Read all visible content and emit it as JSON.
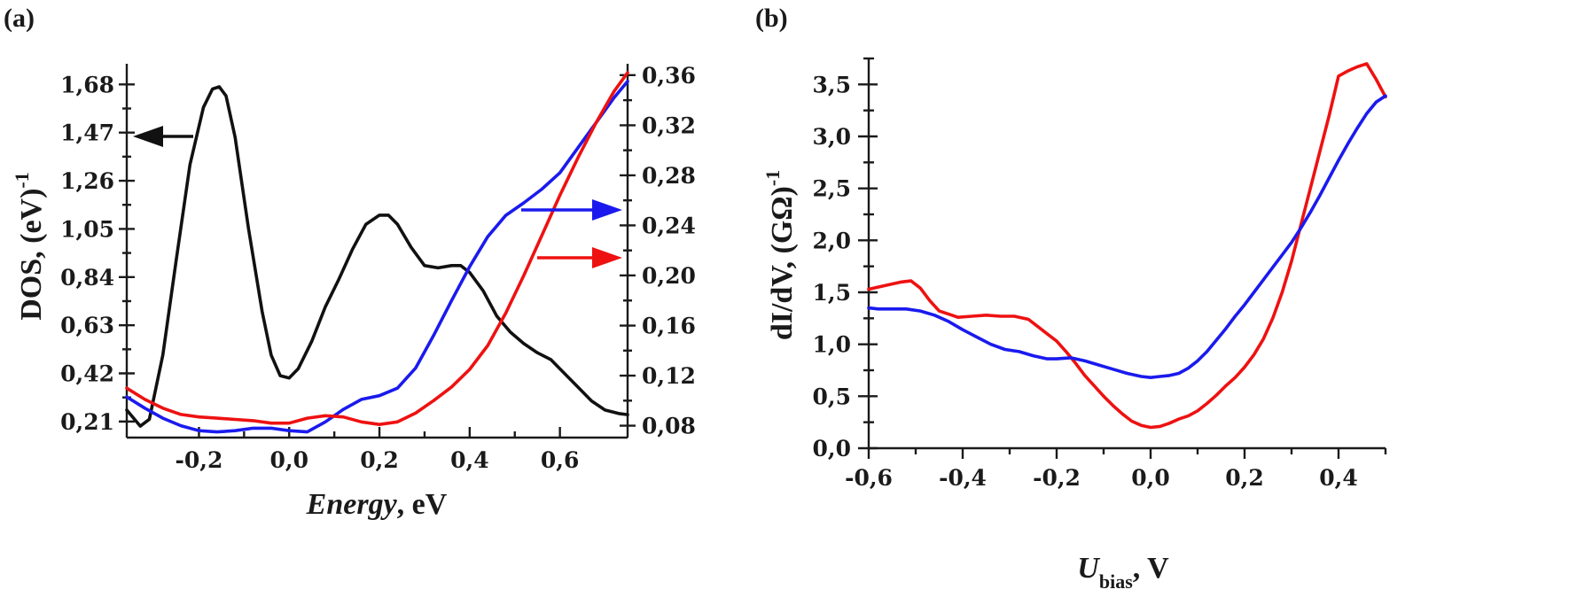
{
  "panels": [
    {
      "label": "(a)",
      "chart_data": {
        "type": "line",
        "xlabel": {
          "italic": "Energy",
          "rest": ", eV"
        },
        "ylabel_left": {
          "main": "DOS, (eV)",
          "sup": "-1"
        },
        "ylabel_right": "",
        "xlim": [
          -0.36,
          0.75
        ],
        "ylim_left": [
          0.14,
          1.77
        ],
        "ylim_right": [
          0.0705,
          0.3691
        ],
        "x_ticks": [
          -0.2,
          0.0,
          0.2,
          0.4,
          0.6
        ],
        "x_tick_labels": [
          "-0,2",
          "0,0",
          "0,2",
          "0,4",
          "0,6"
        ],
        "y_left_ticks": [
          0.21,
          0.42,
          0.63,
          0.84,
          1.05,
          1.26,
          1.47,
          1.68
        ],
        "y_left_tick_labels": [
          "0,21",
          "0,42",
          "0,63",
          "0,84",
          "1,05",
          "1,26",
          "1,47",
          "1,68"
        ],
        "y_right_ticks": [
          0.08,
          0.12,
          0.16,
          0.2,
          0.24,
          0.28,
          0.32,
          0.36
        ],
        "y_right_tick_labels": [
          "0,08",
          "0,12",
          "0,16",
          "0,20",
          "0,24",
          "0,28",
          "0,32",
          "0,36"
        ],
        "series": [
          {
            "color": "#111111",
            "axis": "left",
            "arrow": "left",
            "x": [
              -0.36,
              -0.33,
              -0.31,
              -0.28,
              -0.25,
              -0.22,
              -0.19,
              -0.17,
              -0.155,
              -0.14,
              -0.12,
              -0.09,
              -0.06,
              -0.04,
              -0.02,
              0.0,
              0.02,
              0.05,
              0.08,
              0.11,
              0.14,
              0.17,
              0.2,
              0.22,
              0.24,
              0.27,
              0.3,
              0.33,
              0.36,
              0.38,
              0.4,
              0.43,
              0.46,
              0.49,
              0.52,
              0.55,
              0.58,
              0.61,
              0.64,
              0.67,
              0.7,
              0.73,
              0.75
            ],
            "y": [
              0.26,
              0.19,
              0.22,
              0.5,
              0.92,
              1.33,
              1.58,
              1.66,
              1.67,
              1.63,
              1.45,
              1.05,
              0.69,
              0.5,
              0.41,
              0.4,
              0.44,
              0.56,
              0.71,
              0.83,
              0.96,
              1.07,
              1.11,
              1.11,
              1.07,
              0.97,
              0.89,
              0.88,
              0.89,
              0.89,
              0.86,
              0.78,
              0.67,
              0.6,
              0.55,
              0.51,
              0.48,
              0.42,
              0.36,
              0.3,
              0.26,
              0.245,
              0.24
            ]
          },
          {
            "color": "#1a1aee",
            "axis": "right",
            "arrow": "right",
            "x": [
              -0.36,
              -0.32,
              -0.28,
              -0.24,
              -0.2,
              -0.16,
              -0.12,
              -0.08,
              -0.04,
              0.0,
              0.04,
              0.08,
              0.12,
              0.16,
              0.2,
              0.24,
              0.28,
              0.32,
              0.36,
              0.4,
              0.44,
              0.48,
              0.52,
              0.56,
              0.6,
              0.64,
              0.68,
              0.72,
              0.75
            ],
            "y": [
              0.103,
              0.094,
              0.086,
              0.08,
              0.076,
              0.075,
              0.076,
              0.078,
              0.078,
              0.076,
              0.075,
              0.083,
              0.093,
              0.101,
              0.104,
              0.11,
              0.126,
              0.152,
              0.18,
              0.207,
              0.231,
              0.248,
              0.258,
              0.269,
              0.282,
              0.302,
              0.322,
              0.342,
              0.355
            ]
          },
          {
            "color": "#ee1111",
            "axis": "right",
            "arrow": "right",
            "x": [
              -0.36,
              -0.32,
              -0.28,
              -0.24,
              -0.2,
              -0.16,
              -0.12,
              -0.08,
              -0.04,
              0.0,
              0.04,
              0.08,
              0.12,
              0.16,
              0.2,
              0.24,
              0.28,
              0.32,
              0.36,
              0.4,
              0.44,
              0.48,
              0.52,
              0.56,
              0.6,
              0.64,
              0.68,
              0.72,
              0.75
            ],
            "y": [
              0.11,
              0.101,
              0.094,
              0.089,
              0.087,
              0.086,
              0.085,
              0.084,
              0.082,
              0.082,
              0.086,
              0.088,
              0.087,
              0.083,
              0.081,
              0.083,
              0.09,
              0.1,
              0.111,
              0.125,
              0.144,
              0.17,
              0.2,
              0.232,
              0.264,
              0.294,
              0.322,
              0.347,
              0.362
            ]
          }
        ]
      }
    },
    {
      "label": "(b)",
      "chart_data": {
        "type": "line",
        "xlabel": {
          "main": "U",
          "sub": "bias",
          "rest": ", V"
        },
        "ylabel": {
          "main": "dI/dV, (GΩ)",
          "sup": "-1"
        },
        "xlim": [
          -0.6,
          0.5
        ],
        "ylim": [
          0.0,
          3.75
        ],
        "x_ticks": [
          -0.6,
          -0.4,
          -0.2,
          0.0,
          0.2,
          0.4
        ],
        "x_tick_labels": [
          "-0,6",
          "-0,4",
          "-0,2",
          "0,0",
          "0,2",
          "0,4"
        ],
        "y_ticks": [
          0.0,
          0.5,
          1.0,
          1.5,
          2.0,
          2.5,
          3.0,
          3.5
        ],
        "y_tick_labels": [
          "0,0",
          "0,5",
          "1,0",
          "1,5",
          "2,0",
          "2,5",
          "3,0",
          "3,5"
        ],
        "series": [
          {
            "color": "#ee1111",
            "x": [
              -0.6,
              -0.58,
              -0.56,
              -0.53,
              -0.51,
              -0.49,
              -0.47,
              -0.45,
              -0.43,
              -0.41,
              -0.38,
              -0.35,
              -0.32,
              -0.29,
              -0.26,
              -0.24,
              -0.22,
              -0.2,
              -0.18,
              -0.16,
              -0.14,
              -0.12,
              -0.1,
              -0.08,
              -0.06,
              -0.04,
              -0.02,
              0.0,
              0.02,
              0.04,
              0.06,
              0.08,
              0.1,
              0.12,
              0.14,
              0.16,
              0.18,
              0.2,
              0.22,
              0.24,
              0.26,
              0.28,
              0.3,
              0.32,
              0.34,
              0.36,
              0.38,
              0.4,
              0.42,
              0.44,
              0.46,
              0.48,
              0.5
            ],
            "y": [
              1.53,
              1.55,
              1.57,
              1.6,
              1.61,
              1.54,
              1.42,
              1.32,
              1.29,
              1.26,
              1.27,
              1.28,
              1.27,
              1.27,
              1.24,
              1.17,
              1.1,
              1.03,
              0.93,
              0.82,
              0.7,
              0.6,
              0.5,
              0.41,
              0.33,
              0.26,
              0.22,
              0.2,
              0.21,
              0.24,
              0.28,
              0.31,
              0.36,
              0.43,
              0.51,
              0.6,
              0.68,
              0.78,
              0.9,
              1.05,
              1.25,
              1.5,
              1.8,
              2.15,
              2.5,
              2.85,
              3.2,
              3.58,
              3.63,
              3.67,
              3.7,
              3.55,
              3.38
            ]
          },
          {
            "color": "#1a1aee",
            "x": [
              -0.6,
              -0.58,
              -0.55,
              -0.52,
              -0.49,
              -0.46,
              -0.43,
              -0.4,
              -0.37,
              -0.34,
              -0.31,
              -0.28,
              -0.25,
              -0.22,
              -0.2,
              -0.17,
              -0.14,
              -0.11,
              -0.08,
              -0.05,
              -0.02,
              0.0,
              0.02,
              0.04,
              0.06,
              0.08,
              0.1,
              0.12,
              0.14,
              0.16,
              0.18,
              0.2,
              0.22,
              0.24,
              0.26,
              0.28,
              0.3,
              0.32,
              0.34,
              0.36,
              0.38,
              0.4,
              0.42,
              0.44,
              0.46,
              0.48,
              0.5
            ],
            "y": [
              1.35,
              1.34,
              1.34,
              1.34,
              1.32,
              1.28,
              1.22,
              1.14,
              1.07,
              1.0,
              0.95,
              0.93,
              0.89,
              0.86,
              0.86,
              0.87,
              0.84,
              0.8,
              0.76,
              0.72,
              0.69,
              0.68,
              0.69,
              0.7,
              0.72,
              0.77,
              0.84,
              0.93,
              1.04,
              1.15,
              1.27,
              1.38,
              1.5,
              1.62,
              1.74,
              1.86,
              1.98,
              2.12,
              2.27,
              2.43,
              2.6,
              2.77,
              2.93,
              3.08,
              3.22,
              3.33,
              3.39
            ]
          }
        ]
      }
    }
  ]
}
